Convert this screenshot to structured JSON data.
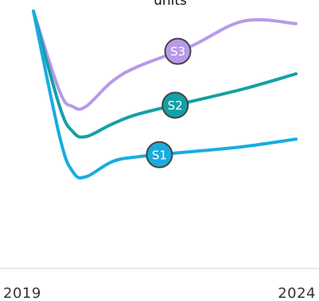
{
  "chart_data": {
    "type": "line",
    "title": "units",
    "xlabel": "",
    "ylabel": "",
    "x_ticks": [
      "2019",
      "2024"
    ],
    "xlim": [
      2019,
      2024
    ],
    "ylim": [
      0,
      100
    ],
    "grid": false,
    "legend": "inline-labels",
    "series": [
      {
        "name": "S1",
        "color": "#19ace0",
        "x": [
          2019,
          2019.5,
          2019.75,
          2020,
          2020.5,
          2021,
          2022,
          2023,
          2024
        ],
        "y": [
          100,
          50,
          36,
          34,
          40,
          42,
          44,
          46,
          49
        ]
      },
      {
        "name": "S2",
        "color": "#14a0a4",
        "x": [
          2019,
          2019.5,
          2019.75,
          2020,
          2020.5,
          2021,
          2022,
          2023,
          2024
        ],
        "y": [
          100,
          62,
          52,
          50,
          55,
          59,
          64,
          69,
          75
        ]
      },
      {
        "name": "S3",
        "color": "#b79aea",
        "x": [
          2019,
          2019.5,
          2019.75,
          2020,
          2020.5,
          2021,
          2022,
          2023,
          2024
        ],
        "y": [
          100,
          68,
          62,
          62,
          72,
          78,
          86,
          96,
          95
        ]
      }
    ]
  }
}
